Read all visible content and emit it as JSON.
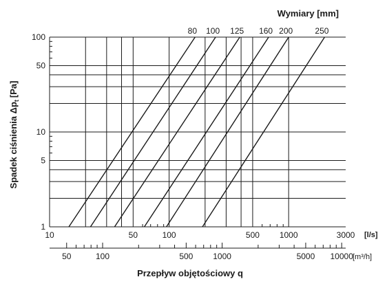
{
  "chart_data": {
    "type": "line",
    "title": "Wymiary [mm]",
    "xlabel": "Przepływ objętościowy q",
    "ylabel": "Spadek ciśnienia Δp",
    "ylabel_sub": "t",
    "ylabel_unit": "[Pa]",
    "x_unit_primary": "[l/s]",
    "x_unit_secondary": "[m³/h]",
    "x_scale": "log",
    "y_scale": "log",
    "xlim": [
      10,
      3000
    ],
    "ylim": [
      1,
      100
    ],
    "x_ticks": [
      "10",
      "50",
      "100",
      "500",
      "1000",
      "3000"
    ],
    "x2_ticks": [
      "50",
      "100",
      "500",
      "1000",
      "5000",
      "10000"
    ],
    "y_ticks": [
      "1",
      "5",
      "10",
      "50",
      "100"
    ],
    "grid": true,
    "series": [
      {
        "name": "80",
        "x": [
          14.5,
          165
        ],
        "y": [
          1,
          100
        ]
      },
      {
        "name": "100",
        "x": [
          22,
          245
        ],
        "y": [
          1,
          100
        ]
      },
      {
        "name": "125",
        "x": [
          35,
          390
        ],
        "y": [
          1,
          100
        ]
      },
      {
        "name": "160",
        "x": [
          62,
          680
        ],
        "y": [
          1,
          100
        ]
      },
      {
        "name": "200",
        "x": [
          95,
          1000
        ],
        "y": [
          1,
          100
        ]
      },
      {
        "name": "250",
        "x": [
          190,
          2000
        ],
        "y": [
          1,
          100
        ]
      }
    ]
  }
}
